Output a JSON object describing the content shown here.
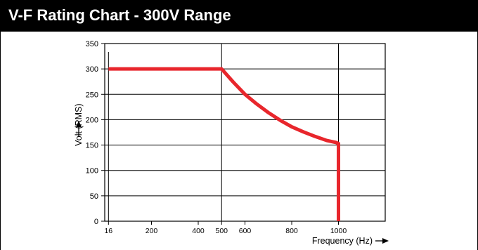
{
  "header": {
    "title": "V-F Rating Chart - 300V Range"
  },
  "chart_data": {
    "type": "line",
    "title": "V-F Rating Chart - 300V Range",
    "xlabel": "Frequency (Hz)",
    "ylabel": "Volt (RMS)",
    "xlim": [
      0,
      1200
    ],
    "ylim": [
      0,
      350
    ],
    "x_ticks": [
      16,
      200,
      400,
      500,
      600,
      800,
      1000
    ],
    "y_ticks": [
      0,
      50,
      100,
      150,
      200,
      250,
      300,
      350
    ],
    "x_gridlines": [
      500,
      1000
    ],
    "y_gridlines": [
      50,
      100,
      150,
      200,
      250,
      300,
      350
    ],
    "grid": true,
    "legend": "none",
    "series": [
      {
        "color": "#e8262c",
        "x": [
          16,
          500,
          550,
          600,
          650,
          700,
          750,
          800,
          850,
          900,
          950,
          990,
          1000,
          1000
        ],
        "y": [
          300,
          300,
          274,
          250,
          231,
          214,
          199,
          186,
          176,
          167,
          159,
          155,
          153,
          0
        ]
      }
    ]
  },
  "colors": {
    "title_bg": "#000000",
    "title_text": "#ffffff",
    "curve": "#e8262c",
    "axes": "#000000"
  }
}
